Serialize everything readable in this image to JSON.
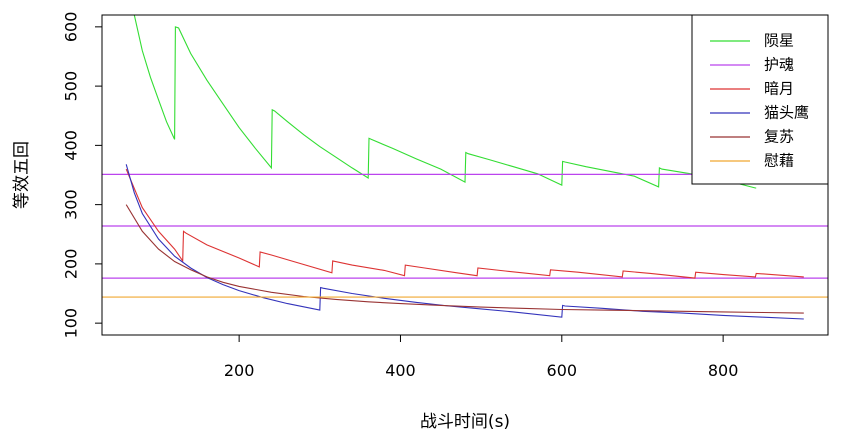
{
  "chart_data": {
    "type": "line",
    "xlabel": "战斗时间(s)",
    "ylabel": "等效五回",
    "xlim": [
      30,
      930
    ],
    "ylim": [
      80,
      620
    ],
    "xticks": [
      200,
      400,
      600,
      800
    ],
    "yticks": [
      100,
      200,
      300,
      400,
      500,
      600
    ],
    "legend_position": "top-right",
    "grid": false,
    "series": [
      {
        "name": "陨星",
        "color": "#33dd33",
        "x": [
          60,
          70,
          80,
          90,
          100,
          110,
          120,
          121,
          125,
          140,
          160,
          180,
          200,
          220,
          240,
          241,
          244,
          260,
          280,
          300,
          320,
          340,
          360,
          361,
          364,
          390,
          420,
          450,
          480,
          481,
          484,
          510,
          540,
          570,
          600,
          601,
          604,
          630,
          660,
          690,
          720,
          721,
          724,
          760,
          800,
          840,
          841
        ],
        "values": [
          700,
          620,
          560,
          515,
          477,
          440,
          410,
          600,
          598,
          555,
          510,
          470,
          430,
          395,
          362,
          460,
          458,
          440,
          418,
          398,
          380,
          362,
          345,
          412,
          410,
          395,
          377,
          360,
          338,
          388,
          386,
          376,
          364,
          352,
          333,
          373,
          372,
          364,
          356,
          348,
          330,
          362,
          360,
          352,
          342,
          328,
          328
        ]
      },
      {
        "name": "护魂",
        "color": "#bb44ee",
        "hlines": [
          351,
          264,
          176
        ],
        "x": [],
        "values": []
      },
      {
        "name": "暗月",
        "color": "#dd3333",
        "x": [
          60,
          80,
          100,
          120,
          130,
          131,
          134,
          160,
          200,
          225,
          226,
          240,
          270,
          315,
          316,
          340,
          380,
          405,
          406,
          430,
          470,
          495,
          496,
          530,
          585,
          586,
          620,
          675,
          676,
          710,
          765,
          766,
          800,
          840,
          841,
          900
        ],
        "values": [
          360,
          295,
          255,
          225,
          205,
          255,
          252,
          232,
          210,
          195,
          220,
          215,
          203,
          185,
          205,
          198,
          189,
          180,
          198,
          193,
          185,
          180,
          193,
          188,
          180,
          190,
          186,
          178,
          188,
          184,
          176,
          186,
          182,
          178,
          184,
          178
        ]
      },
      {
        "name": "猫头鹰",
        "color": "#3333bb",
        "x": [
          60,
          70,
          80,
          100,
          120,
          140,
          160,
          180,
          200,
          230,
          260,
          300,
          301,
          304,
          340,
          380,
          420,
          460,
          500,
          540,
          600,
          601,
          604,
          650,
          700,
          750,
          800,
          850,
          900
        ],
        "values": [
          368,
          320,
          285,
          242,
          213,
          193,
          177,
          165,
          155,
          143,
          133,
          122,
          160,
          159,
          150,
          142,
          135,
          129,
          124,
          119,
          110,
          130,
          129,
          125,
          120,
          117,
          113,
          110,
          107
        ]
      },
      {
        "name": "复苏",
        "color": "#993333",
        "x": [
          60,
          80,
          100,
          120,
          140,
          160,
          180,
          200,
          240,
          280,
          320,
          360,
          400,
          450,
          500,
          550,
          600,
          650,
          700,
          750,
          800,
          850,
          900
        ],
        "values": [
          300,
          255,
          225,
          204,
          190,
          178,
          169,
          162,
          152,
          145,
          140,
          136,
          133,
          130,
          127,
          125,
          123,
          122,
          121,
          120,
          119,
          118,
          117
        ]
      },
      {
        "name": "慰藉",
        "color": "#f0a830",
        "hlines": [
          144
        ],
        "x": [],
        "values": []
      }
    ]
  }
}
